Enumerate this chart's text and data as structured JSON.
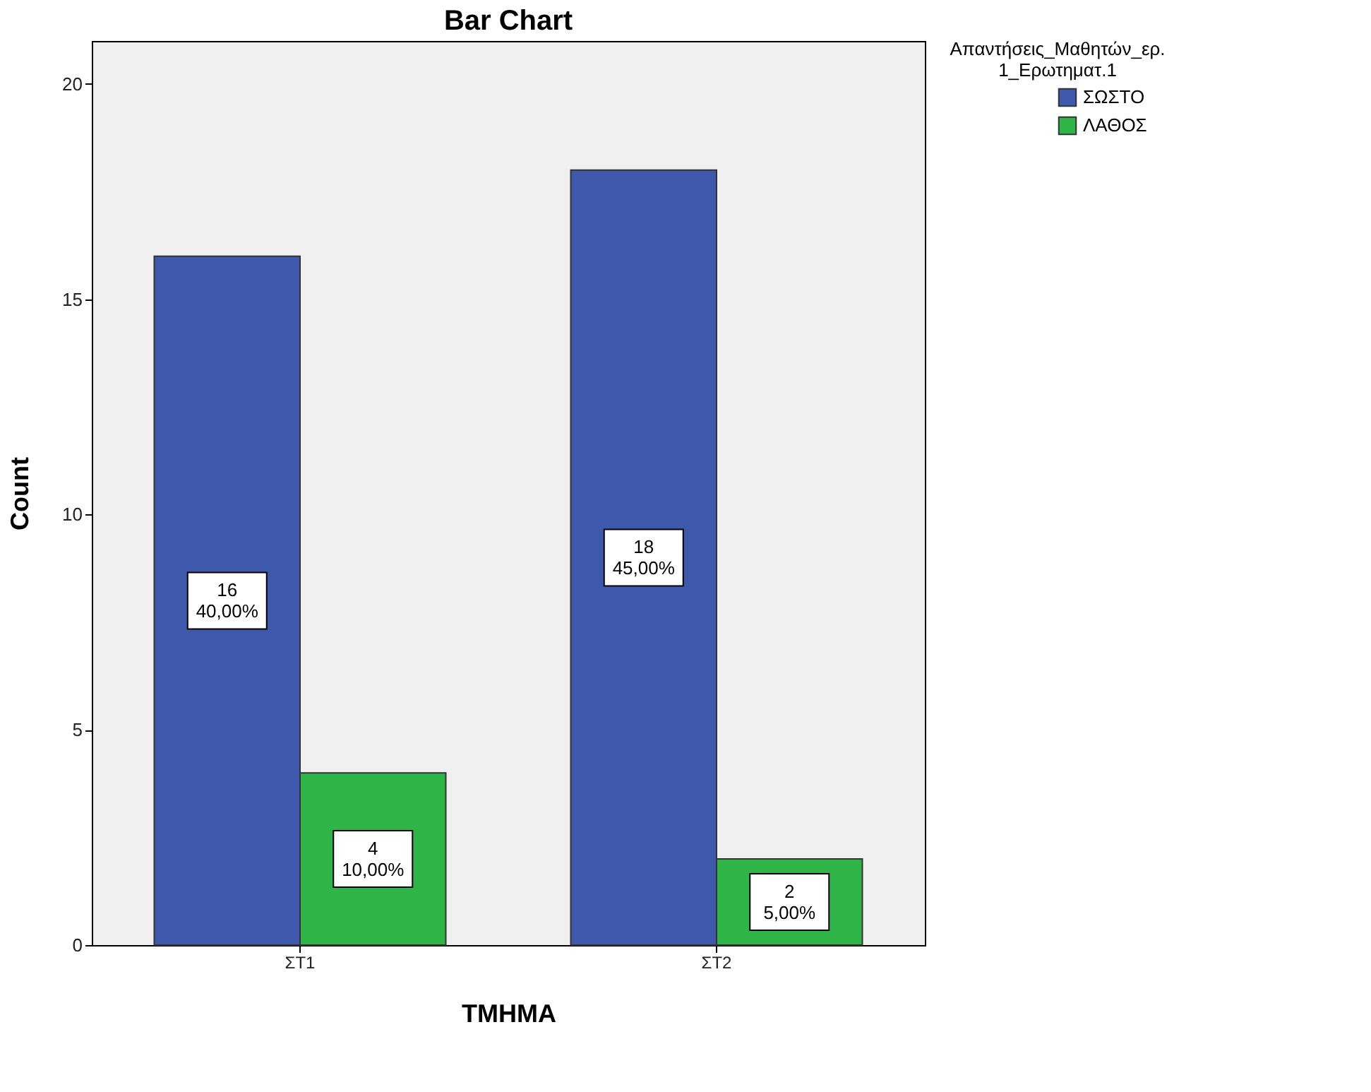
{
  "chart_data": {
    "type": "bar",
    "title": "Bar Chart",
    "xlabel": "ΤΜΗΜΑ",
    "ylabel": "Count",
    "legend_title": "Απαντήσεις_Μαθητών_ερ.\n1_Ερωτηματ.1",
    "categories": [
      "ΣΤ1",
      "ΣΤ2"
    ],
    "series": [
      {
        "name": "ΣΩΣΤΟ",
        "color": "#3e58ab",
        "values": [
          16,
          18
        ],
        "value_labels": [
          "16\n40,00%",
          "18\n45,00%"
        ]
      },
      {
        "name": "ΛΑΘΟΣ",
        "color": "#2fb547",
        "values": [
          4,
          2
        ],
        "value_labels": [
          "4\n10,00%",
          "2\n5,00%"
        ]
      }
    ],
    "ylim": [
      0,
      21
    ],
    "yticks": [
      0,
      5,
      10,
      15,
      20
    ],
    "grid": false,
    "legend": "top right"
  }
}
